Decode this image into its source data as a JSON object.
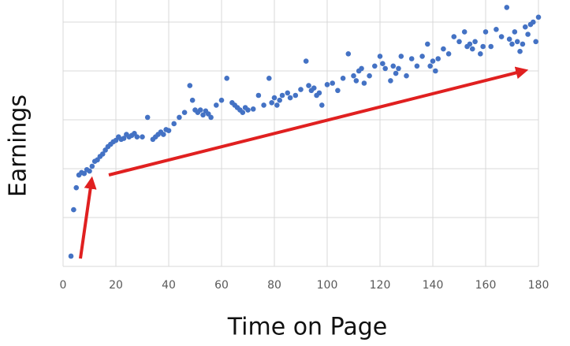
{
  "chart_data": {
    "type": "scatter",
    "x_label": "Time on Page",
    "y_label": "Earnings",
    "color": "#4472c4",
    "grid": true,
    "ytick_labels": false,
    "xlim": [
      0,
      180
    ],
    "xticks": [
      0,
      20,
      40,
      60,
      80,
      100,
      120,
      140,
      160,
      180
    ],
    "ylim": [
      0,
      5.5
    ],
    "yticks": [
      0,
      1,
      2,
      3,
      4,
      5
    ],
    "x": [
      3,
      4,
      5,
      6,
      7,
      8,
      9,
      10,
      11,
      12,
      13,
      14,
      15,
      16,
      17,
      18,
      19,
      20,
      21,
      22,
      23,
      24,
      25,
      26,
      27,
      28,
      30,
      32,
      34,
      35,
      36,
      37,
      38,
      39,
      40,
      42,
      44,
      46,
      48,
      49,
      50,
      51,
      52,
      53,
      54,
      55,
      56,
      58,
      60,
      62,
      64,
      65,
      66,
      67,
      68,
      69,
      70,
      72,
      74,
      76,
      78,
      79,
      80,
      81,
      82,
      83,
      85,
      86,
      88,
      90,
      92,
      93,
      94,
      95,
      96,
      97,
      98,
      100,
      102,
      104,
      106,
      108,
      110,
      111,
      112,
      113,
      114,
      116,
      118,
      120,
      121,
      122,
      124,
      125,
      126,
      127,
      128,
      130,
      132,
      134,
      136,
      138,
      139,
      140,
      141,
      142,
      144,
      146,
      148,
      150,
      152,
      153,
      154,
      155,
      156,
      158,
      159,
      160,
      162,
      164,
      166,
      168,
      169,
      170,
      171,
      172,
      173,
      174,
      175,
      176,
      177,
      178,
      179,
      180
    ],
    "values": [
      0.21,
      1.16,
      1.61,
      1.87,
      1.92,
      1.9,
      1.98,
      1.95,
      2.05,
      2.15,
      2.18,
      2.25,
      2.3,
      2.38,
      2.45,
      2.5,
      2.55,
      2.58,
      2.65,
      2.6,
      2.62,
      2.7,
      2.65,
      2.68,
      2.72,
      2.65,
      2.65,
      3.05,
      2.6,
      2.65,
      2.7,
      2.75,
      2.7,
      2.8,
      2.78,
      2.92,
      3.05,
      3.15,
      3.7,
      3.4,
      3.2,
      3.15,
      3.2,
      3.1,
      3.18,
      3.12,
      3.05,
      3.3,
      3.4,
      3.85,
      3.35,
      3.3,
      3.25,
      3.2,
      3.15,
      3.25,
      3.2,
      3.22,
      3.5,
      3.3,
      3.85,
      3.35,
      3.45,
      3.3,
      3.4,
      3.5,
      3.55,
      3.45,
      3.5,
      3.62,
      4.2,
      3.7,
      3.6,
      3.65,
      3.5,
      3.55,
      3.3,
      3.72,
      3.75,
      3.6,
      3.85,
      4.35,
      3.9,
      3.8,
      4.0,
      4.05,
      3.75,
      3.9,
      4.1,
      4.3,
      4.15,
      4.05,
      3.8,
      4.1,
      3.95,
      4.05,
      4.3,
      3.9,
      4.25,
      4.1,
      4.3,
      4.55,
      4.1,
      4.2,
      4.0,
      4.25,
      4.45,
      4.35,
      4.7,
      4.6,
      4.8,
      4.5,
      4.55,
      4.45,
      4.6,
      4.35,
      4.5,
      4.8,
      4.5,
      4.85,
      4.7,
      5.3,
      4.65,
      4.55,
      4.8,
      4.6,
      4.4,
      4.55,
      4.9,
      4.75,
      4.95,
      5.0,
      4.6,
      5.1
    ]
  }
}
